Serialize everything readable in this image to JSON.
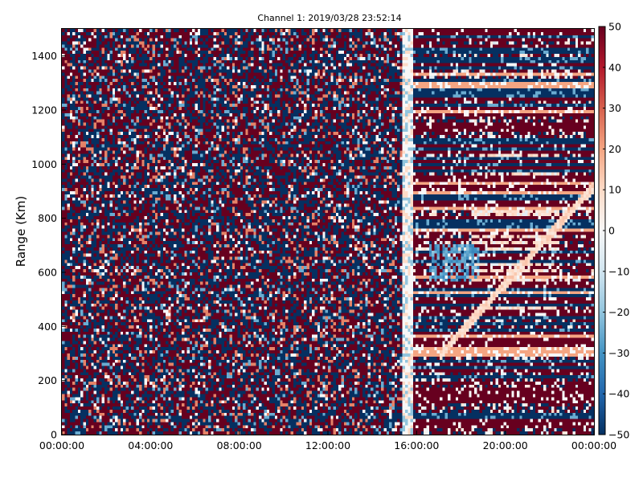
{
  "chart_data": {
    "type": "heatmap",
    "title": "Channel 1: 2019/03/28 23:52:14",
    "xlabel": "",
    "ylabel": "Range (Km)",
    "x_range": [
      "00:00:00",
      "24:00:00"
    ],
    "ylim": [
      0,
      1500
    ],
    "x_ticks": [
      "00:00:00",
      "04:00:00",
      "08:00:00",
      "12:00:00",
      "16:00:00",
      "20:00:00",
      "00:00:00"
    ],
    "x_tick_hours": [
      0,
      4,
      8,
      12,
      16,
      20,
      24
    ],
    "y_ticks": [
      0,
      200,
      400,
      600,
      800,
      1000,
      1200,
      1400
    ],
    "colorbar": {
      "min": -50,
      "max": 50,
      "ticks": [
        50,
        40,
        30,
        20,
        10,
        0,
        -10,
        -20,
        -30,
        -40,
        -50
      ],
      "colormap": "RdBu_r",
      "colors": [
        "#053061",
        "#2166ac",
        "#4393c3",
        "#92c5de",
        "#d1e5f0",
        "#f7f7f7",
        "#fddbc7",
        "#f4a582",
        "#d6604d",
        "#b2182b",
        "#67001f"
      ]
    },
    "grid": false
  }
}
